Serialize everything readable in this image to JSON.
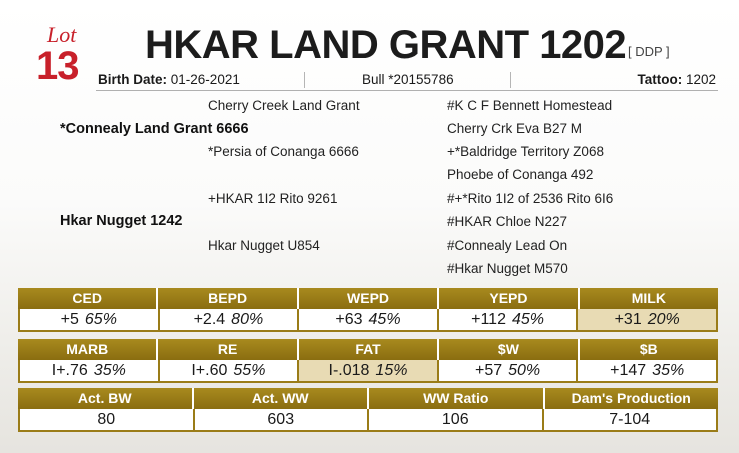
{
  "lot": {
    "word": "Lot",
    "number": "13"
  },
  "title": "HKAR LAND GRANT 1202",
  "code": "[ DDP ]",
  "info": {
    "birth_label": "Birth Date:",
    "birth_value": "01-26-2021",
    "reg": "Bull *20155786",
    "tattoo_label": "Tattoo:",
    "tattoo_value": "1202"
  },
  "pedigree": {
    "sire": "*Connealy Land Grant 6666",
    "sire_sire": "Cherry Creek Land Grant",
    "sire_dam": "*Persia of Conanga 6666",
    "sire_sire_sire": "#K C F Bennett Homestead",
    "sire_sire_dam": "Cherry Crk Eva B27 M",
    "sire_dam_sire": "+*Baldridge Territory Z068",
    "sire_dam_dam": "Phoebe of Conanga 492",
    "dam": "Hkar Nugget 1242",
    "dam_sire": "+HKAR 1I2 Rito 9261",
    "dam_dam": "Hkar Nugget U854",
    "dam_sire_sire": "#+*Rito 1I2 of 2536 Rito 6I6",
    "dam_sire_dam": "#HKAR Chloe N227",
    "dam_dam_sire": "#Connealy Lead On",
    "dam_dam_dam": "#Hkar Nugget M570"
  },
  "epd_row1": [
    {
      "label": "CED",
      "value": "+5",
      "pct": "65%",
      "highlight": false
    },
    {
      "label": "BEPD",
      "value": "+2.4",
      "pct": "80%",
      "highlight": false
    },
    {
      "label": "WEPD",
      "value": "+63",
      "pct": "45%",
      "highlight": false
    },
    {
      "label": "YEPD",
      "value": "+112",
      "pct": "45%",
      "highlight": false
    },
    {
      "label": "MILK",
      "value": "+31",
      "pct": "20%",
      "highlight": true
    }
  ],
  "epd_row2": [
    {
      "label": "MARB",
      "value": "I+.76",
      "pct": "35%",
      "highlight": false
    },
    {
      "label": "RE",
      "value": "I+.60",
      "pct": "55%",
      "highlight": false
    },
    {
      "label": "FAT",
      "value": "I-.018",
      "pct": "15%",
      "highlight": true
    },
    {
      "label": "$W",
      "value": "+57",
      "pct": "50%",
      "highlight": false
    },
    {
      "label": "$B",
      "value": "+147",
      "pct": "35%",
      "highlight": false
    }
  ],
  "perf": [
    {
      "label": "Act. BW",
      "value": "80"
    },
    {
      "label": "Act. WW",
      "value": "603"
    },
    {
      "label": "WW Ratio",
      "value": "106"
    },
    {
      "label": "Dam's Production",
      "value": "7-104"
    }
  ],
  "colors": {
    "accent_red": "#c8202a",
    "header_gold": "#9a7c18",
    "highlight": "#e8dbb4"
  }
}
